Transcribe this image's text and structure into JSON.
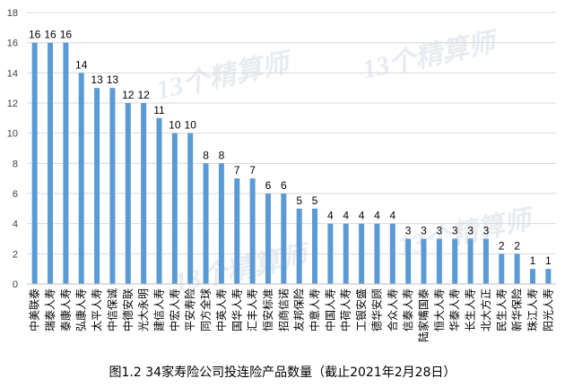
{
  "caption": "图1.2  34家寿险公司投连险产品数量（截止2021年2月28日）",
  "watermark": "13个精算师",
  "chart_data": {
    "type": "bar",
    "categories": [
      "中美联泰",
      "瑞泰人寿",
      "泰康人寿",
      "弘康人寿",
      "太平人寿",
      "中信保诚",
      "中德安联",
      "光大永明",
      "建信人寿",
      "中宏人寿",
      "平安寿险",
      "同方全球",
      "中英人寿",
      "国华人寿",
      "汇丰人寿",
      "恒安标准",
      "招商信诺",
      "友邦保险",
      "中意人寿",
      "中国人寿",
      "中荷人寿",
      "工银安盛",
      "德华安顾",
      "合众人寿",
      "信泰人寿",
      "陆家嘴国泰",
      "恒大人寿",
      "华泰人寿",
      "长生人寿",
      "北大方正",
      "民生人寿",
      "新华保险",
      "珠江人寿",
      "阳光人寿"
    ],
    "values": [
      16,
      16,
      16,
      14,
      13,
      13,
      12,
      12,
      11,
      10,
      10,
      8,
      8,
      7,
      7,
      6,
      6,
      5,
      5,
      4,
      4,
      4,
      4,
      4,
      3,
      3,
      3,
      3,
      3,
      3,
      2,
      2,
      1,
      1
    ],
    "ylim": [
      0,
      18
    ],
    "yticks": [
      0,
      2,
      4,
      6,
      8,
      10,
      12,
      14,
      16,
      18
    ],
    "grid": true,
    "bar_color": "#5b9bd5",
    "grid_color": "#d9d9d9"
  }
}
